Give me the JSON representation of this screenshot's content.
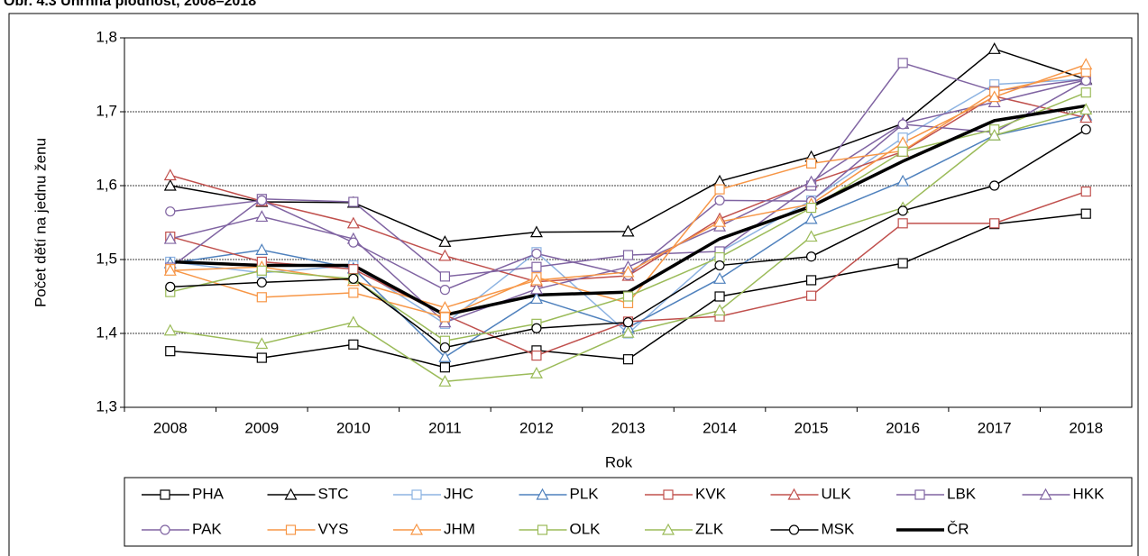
{
  "chart_data": {
    "type": "line",
    "title": "Obr. 4.3 Úhrnná plodnost, 2008–2018",
    "xlabel": "Rok",
    "ylabel": "Počet dětí na jednu ženu",
    "categories": [
      "2008",
      "2009",
      "2010",
      "2011",
      "2012",
      "2013",
      "2014",
      "2015",
      "2016",
      "2017",
      "2018"
    ],
    "ylim": [
      1.3,
      1.8
    ],
    "yticks": [
      {
        "value": 1.3,
        "label": "1,3"
      },
      {
        "value": 1.4,
        "label": "1,4"
      },
      {
        "value": 1.5,
        "label": "1,5"
      },
      {
        "value": 1.6,
        "label": "1,6"
      },
      {
        "value": 1.7,
        "label": "1,7"
      },
      {
        "value": 1.8,
        "label": "1,8"
      }
    ],
    "grid": true,
    "legend": "bottom",
    "series": [
      {
        "name": "PHA",
        "color": "#000000",
        "marker": "square",
        "linewidth": 1.5,
        "values": [
          1.376,
          1.367,
          1.385,
          1.354,
          1.377,
          1.365,
          1.45,
          1.472,
          1.495,
          1.548,
          1.562
        ]
      },
      {
        "name": "STC",
        "color": "#000000",
        "marker": "triangle",
        "linewidth": 1.5,
        "values": [
          1.6,
          1.578,
          1.577,
          1.524,
          1.537,
          1.538,
          1.606,
          1.639,
          1.684,
          1.785,
          1.744
        ]
      },
      {
        "name": "JHC",
        "color": "#8db3e2",
        "marker": "square",
        "linewidth": 1.5,
        "values": [
          1.497,
          1.482,
          1.492,
          1.413,
          1.51,
          1.4,
          1.51,
          1.58,
          1.665,
          1.737,
          1.744
        ]
      },
      {
        "name": "PLK",
        "color": "#4f81bd",
        "marker": "triangle",
        "linewidth": 1.5,
        "values": [
          1.495,
          1.513,
          1.488,
          1.368,
          1.447,
          1.408,
          1.474,
          1.555,
          1.606,
          1.668,
          1.695
        ]
      },
      {
        "name": "KVK",
        "color": "#c0504d",
        "marker": "square",
        "linewidth": 1.5,
        "values": [
          1.531,
          1.497,
          1.487,
          1.425,
          1.37,
          1.416,
          1.423,
          1.451,
          1.549,
          1.549,
          1.592
        ]
      },
      {
        "name": "ULK",
        "color": "#c0504d",
        "marker": "triangle",
        "linewidth": 1.5,
        "values": [
          1.614,
          1.579,
          1.549,
          1.505,
          1.47,
          1.478,
          1.555,
          1.604,
          1.646,
          1.721,
          1.692
        ]
      },
      {
        "name": "LBK",
        "color": "#8064a2",
        "marker": "square",
        "linewidth": 1.5,
        "values": [
          1.489,
          1.582,
          1.578,
          1.477,
          1.49,
          1.506,
          1.511,
          1.6,
          1.766,
          1.728,
          1.744
        ]
      },
      {
        "name": "HKK",
        "color": "#8064a2",
        "marker": "triangle",
        "linewidth": 1.5,
        "values": [
          1.528,
          1.558,
          1.528,
          1.415,
          1.46,
          1.49,
          1.545,
          1.605,
          1.684,
          1.713,
          1.743
        ]
      },
      {
        "name": "PAK",
        "color": "#8064a2",
        "marker": "circle",
        "linewidth": 1.5,
        "values": [
          1.565,
          1.58,
          1.523,
          1.459,
          1.508,
          1.479,
          1.58,
          1.579,
          1.683,
          1.672,
          1.742
        ]
      },
      {
        "name": "VYS",
        "color": "#f79646",
        "marker": "square",
        "linewidth": 1.5,
        "values": [
          1.487,
          1.449,
          1.455,
          1.422,
          1.476,
          1.441,
          1.595,
          1.63,
          1.647,
          1.727,
          1.754
        ]
      },
      {
        "name": "JHM",
        "color": "#f79646",
        "marker": "triangle",
        "linewidth": 1.5,
        "values": [
          1.485,
          1.49,
          1.471,
          1.435,
          1.472,
          1.483,
          1.551,
          1.575,
          1.658,
          1.72,
          1.764
        ]
      },
      {
        "name": "OLK",
        "color": "#9bbb59",
        "marker": "square",
        "linewidth": 1.5,
        "values": [
          1.456,
          1.485,
          1.474,
          1.39,
          1.413,
          1.45,
          1.503,
          1.57,
          1.646,
          1.676,
          1.726
        ]
      },
      {
        "name": "ZLK",
        "color": "#9bbb59",
        "marker": "triangle",
        "linewidth": 1.5,
        "values": [
          1.404,
          1.386,
          1.415,
          1.335,
          1.346,
          1.401,
          1.431,
          1.531,
          1.57,
          1.668,
          1.703
        ]
      },
      {
        "name": "MSK",
        "color": "#000000",
        "marker": "circle",
        "linewidth": 1.5,
        "values": [
          1.463,
          1.469,
          1.474,
          1.381,
          1.407,
          1.415,
          1.492,
          1.504,
          1.566,
          1.6,
          1.676
        ]
      },
      {
        "name": "ČR",
        "color": "#000000",
        "marker": "none",
        "linewidth": 3.5,
        "values": [
          1.497,
          1.492,
          1.492,
          1.425,
          1.452,
          1.456,
          1.528,
          1.572,
          1.633,
          1.688,
          1.708
        ]
      }
    ]
  }
}
